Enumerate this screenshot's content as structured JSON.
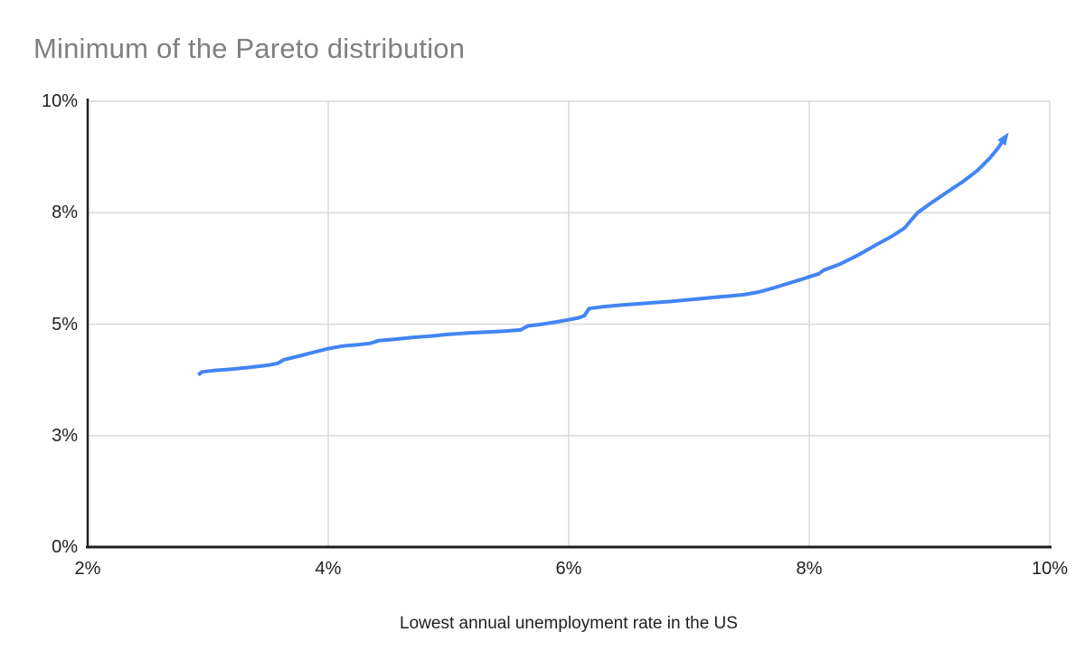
{
  "title": "Minimum of the Pareto distribution",
  "chart_data": {
    "type": "line",
    "title": "Minimum of the Pareto distribution",
    "xlabel": "Lowest annual unemployment rate in the US",
    "ylabel": "",
    "xlim": [
      2,
      10
    ],
    "ylim": [
      0,
      10
    ],
    "grid": true,
    "legend": "none",
    "x_ticks": [
      {
        "value": 2,
        "label": "2%"
      },
      {
        "value": 4,
        "label": "4%"
      },
      {
        "value": 6,
        "label": "6%"
      },
      {
        "value": 8,
        "label": "8%"
      },
      {
        "value": 10,
        "label": "10%"
      }
    ],
    "y_ticks": [
      {
        "value": 0,
        "label": "0%"
      },
      {
        "value": 2.5,
        "label": "3%"
      },
      {
        "value": 5,
        "label": "5%"
      },
      {
        "value": 7.5,
        "label": "8%"
      },
      {
        "value": 10,
        "label": "10%"
      }
    ],
    "colors": {
      "line": "#4285f4",
      "grid": "#d9d9d9",
      "axis": "#212121",
      "tick_label": "#212121",
      "title": "#808080"
    },
    "series": [
      {
        "name": "Minimum of the Pareto distribution",
        "color": "#4285f4",
        "line_width": 4,
        "end_arrow": true,
        "points": [
          [
            2.92,
            3.86
          ],
          [
            2.95,
            3.93
          ],
          [
            3.05,
            3.96
          ],
          [
            3.2,
            3.99
          ],
          [
            3.35,
            4.03
          ],
          [
            3.5,
            4.08
          ],
          [
            3.58,
            4.12
          ],
          [
            3.63,
            4.2
          ],
          [
            3.75,
            4.28
          ],
          [
            3.88,
            4.37
          ],
          [
            4.0,
            4.45
          ],
          [
            4.12,
            4.51
          ],
          [
            4.25,
            4.54
          ],
          [
            4.35,
            4.57
          ],
          [
            4.42,
            4.63
          ],
          [
            4.55,
            4.66
          ],
          [
            4.7,
            4.7
          ],
          [
            4.85,
            4.73
          ],
          [
            5.0,
            4.77
          ],
          [
            5.15,
            4.8
          ],
          [
            5.3,
            4.82
          ],
          [
            5.45,
            4.84
          ],
          [
            5.6,
            4.87
          ],
          [
            5.66,
            4.96
          ],
          [
            5.78,
            5.0
          ],
          [
            5.9,
            5.05
          ],
          [
            6.0,
            5.1
          ],
          [
            6.08,
            5.14
          ],
          [
            6.13,
            5.19
          ],
          [
            6.17,
            5.35
          ],
          [
            6.28,
            5.39
          ],
          [
            6.45,
            5.43
          ],
          [
            6.65,
            5.47
          ],
          [
            6.85,
            5.51
          ],
          [
            7.05,
            5.56
          ],
          [
            7.25,
            5.61
          ],
          [
            7.45,
            5.66
          ],
          [
            7.58,
            5.72
          ],
          [
            7.7,
            5.81
          ],
          [
            7.82,
            5.91
          ],
          [
            7.93,
            6.0
          ],
          [
            8.02,
            6.08
          ],
          [
            8.08,
            6.13
          ],
          [
            8.12,
            6.21
          ],
          [
            8.25,
            6.34
          ],
          [
            8.4,
            6.54
          ],
          [
            8.55,
            6.77
          ],
          [
            8.68,
            6.96
          ],
          [
            8.79,
            7.15
          ],
          [
            8.9,
            7.5
          ],
          [
            9.02,
            7.73
          ],
          [
            9.15,
            7.97
          ],
          [
            9.28,
            8.2
          ],
          [
            9.4,
            8.45
          ],
          [
            9.5,
            8.72
          ],
          [
            9.57,
            8.95
          ],
          [
            9.62,
            9.15
          ]
        ]
      }
    ]
  }
}
